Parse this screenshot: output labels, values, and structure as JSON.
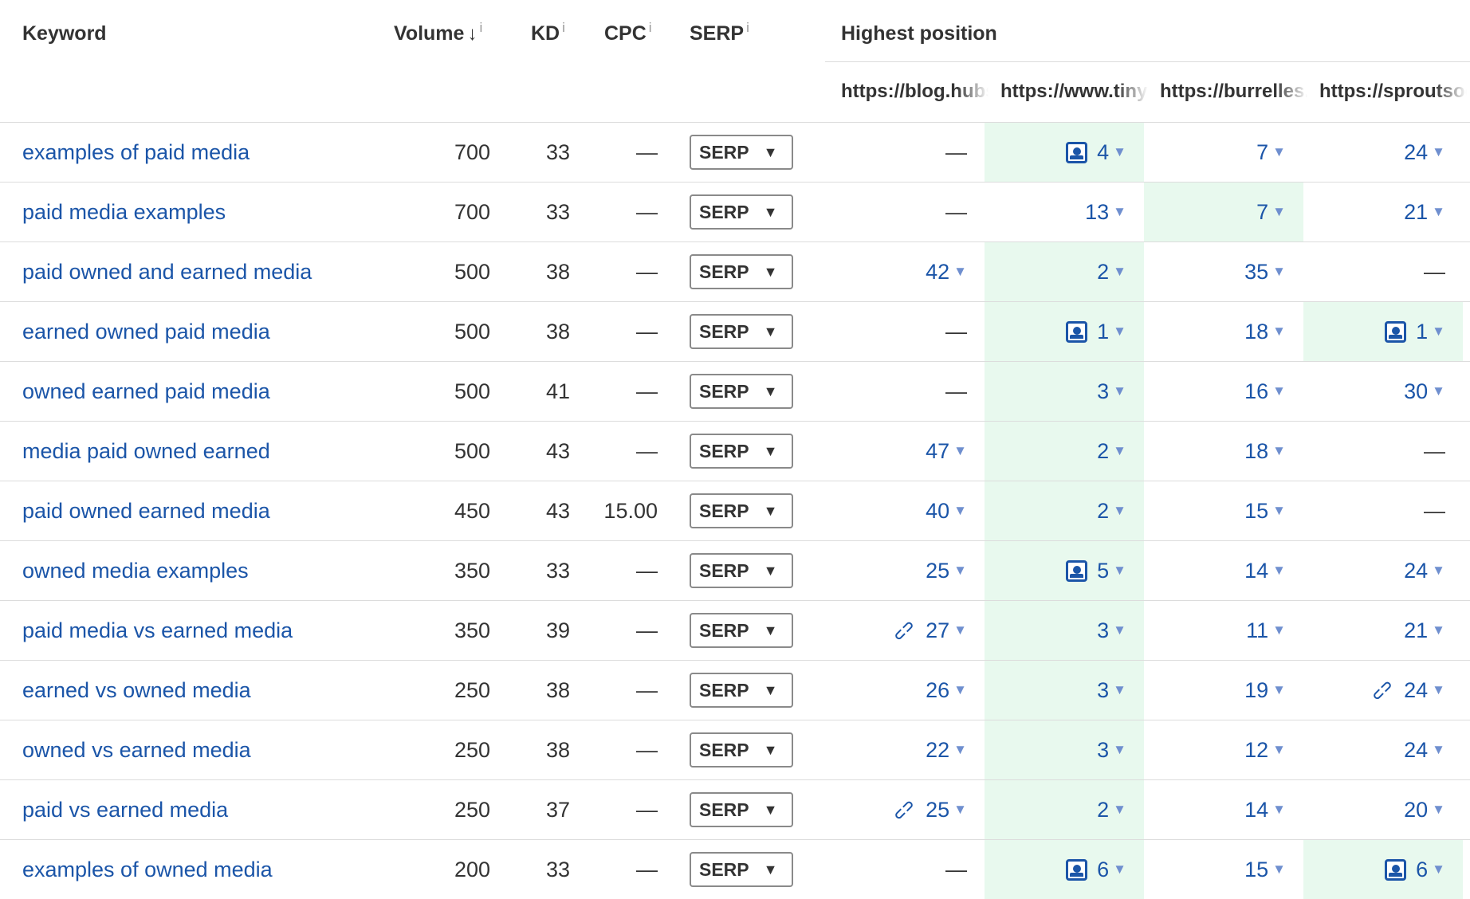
{
  "headers": {
    "keyword": "Keyword",
    "volume": "Volume",
    "volume_sort_icon": "arrow-down-icon",
    "volume_arrow": "↓",
    "kd": "KD",
    "cpc": "CPC",
    "serp": "SERP",
    "info": "i",
    "highest_position": "Highest position"
  },
  "urls": [
    "https://blog.hubspot.com",
    "https://www.tinyurl.com",
    "https://burrelles.com",
    "https://sproutsocial.com"
  ],
  "serp_button_label": "SERP",
  "caret": "▼",
  "position_caret": "▼",
  "dash": "—",
  "colors": {
    "link": "#1b55a8",
    "highlight": "#e8f9ee"
  },
  "rows": [
    {
      "keyword": "examples of paid media",
      "volume": "700",
      "kd": "33",
      "cpc": "—",
      "positions": [
        {
          "value": "—"
        },
        {
          "value": "4",
          "icon": "image",
          "highlight": true
        },
        {
          "value": "7"
        },
        {
          "value": "24"
        }
      ]
    },
    {
      "keyword": "paid media examples",
      "volume": "700",
      "kd": "33",
      "cpc": "—",
      "positions": [
        {
          "value": "—"
        },
        {
          "value": "13"
        },
        {
          "value": "7",
          "highlight": true
        },
        {
          "value": "21"
        }
      ]
    },
    {
      "keyword": "paid owned and earned media",
      "volume": "500",
      "kd": "38",
      "cpc": "—",
      "positions": [
        {
          "value": "42"
        },
        {
          "value": "2",
          "highlight": true
        },
        {
          "value": "35"
        },
        {
          "value": "—"
        }
      ]
    },
    {
      "keyword": "earned owned paid media",
      "volume": "500",
      "kd": "38",
      "cpc": "—",
      "positions": [
        {
          "value": "—"
        },
        {
          "value": "1",
          "icon": "image",
          "highlight": true
        },
        {
          "value": "18"
        },
        {
          "value": "1",
          "icon": "image",
          "highlight": true
        }
      ]
    },
    {
      "keyword": "owned earned paid media",
      "volume": "500",
      "kd": "41",
      "cpc": "—",
      "positions": [
        {
          "value": "—"
        },
        {
          "value": "3",
          "highlight": true
        },
        {
          "value": "16"
        },
        {
          "value": "30"
        }
      ]
    },
    {
      "keyword": "media paid owned earned",
      "volume": "500",
      "kd": "43",
      "cpc": "—",
      "positions": [
        {
          "value": "47"
        },
        {
          "value": "2",
          "highlight": true
        },
        {
          "value": "18"
        },
        {
          "value": "—"
        }
      ]
    },
    {
      "keyword": "paid owned earned media",
      "volume": "450",
      "kd": "43",
      "cpc": "15.00",
      "positions": [
        {
          "value": "40"
        },
        {
          "value": "2",
          "highlight": true
        },
        {
          "value": "15"
        },
        {
          "value": "—"
        }
      ]
    },
    {
      "keyword": "owned media examples",
      "volume": "350",
      "kd": "33",
      "cpc": "—",
      "positions": [
        {
          "value": "25"
        },
        {
          "value": "5",
          "icon": "image",
          "highlight": true
        },
        {
          "value": "14"
        },
        {
          "value": "24"
        }
      ]
    },
    {
      "keyword": "paid media vs earned media",
      "volume": "350",
      "kd": "39",
      "cpc": "—",
      "positions": [
        {
          "value": "27",
          "icon": "link"
        },
        {
          "value": "3",
          "highlight": true
        },
        {
          "value": "11"
        },
        {
          "value": "21"
        }
      ]
    },
    {
      "keyword": "earned vs owned media",
      "volume": "250",
      "kd": "38",
      "cpc": "—",
      "positions": [
        {
          "value": "26"
        },
        {
          "value": "3",
          "highlight": true
        },
        {
          "value": "19"
        },
        {
          "value": "24",
          "icon": "link"
        }
      ]
    },
    {
      "keyword": "owned vs earned media",
      "volume": "250",
      "kd": "38",
      "cpc": "—",
      "positions": [
        {
          "value": "22"
        },
        {
          "value": "3",
          "highlight": true
        },
        {
          "value": "12"
        },
        {
          "value": "24"
        }
      ]
    },
    {
      "keyword": "paid vs earned media",
      "volume": "250",
      "kd": "37",
      "cpc": "—",
      "positions": [
        {
          "value": "25",
          "icon": "link"
        },
        {
          "value": "2",
          "highlight": true
        },
        {
          "value": "14"
        },
        {
          "value": "20"
        }
      ]
    },
    {
      "keyword": "examples of owned media",
      "volume": "200",
      "kd": "33",
      "cpc": "—",
      "positions": [
        {
          "value": "—"
        },
        {
          "value": "6",
          "icon": "image",
          "highlight": true
        },
        {
          "value": "15"
        },
        {
          "value": "6",
          "icon": "image",
          "highlight": true
        }
      ]
    }
  ]
}
